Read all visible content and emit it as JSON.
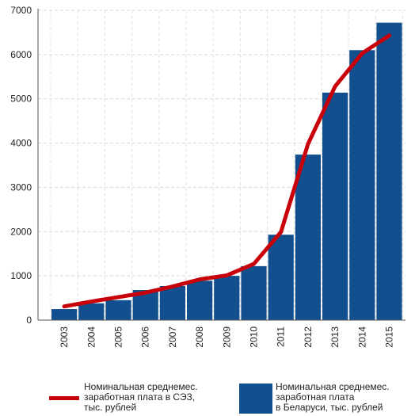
{
  "chart_data": {
    "type": "bar",
    "categories": [
      "2003",
      "2004",
      "2005",
      "2006",
      "2007",
      "2008",
      "2009",
      "2010",
      "2011",
      "2012",
      "2013",
      "2014",
      "2015"
    ],
    "series": [
      {
        "name": "Номинальная среднемес. заработная плата в Беларуси, тыс. рублей",
        "type": "bar",
        "color": "#124f8e",
        "values": [
          250,
          380,
          450,
          680,
          770,
          890,
          1000,
          1220,
          1930,
          3740,
          5140,
          6100,
          6720
        ]
      },
      {
        "name": "Номинальная среднемес. заработная плата в СЭЗ, тыс. рублей",
        "type": "line",
        "color": "#c8000a",
        "values": [
          310,
          420,
          520,
          620,
          760,
          920,
          1010,
          1270,
          1990,
          3980,
          5280,
          6030,
          6430
        ]
      }
    ],
    "ylim": [
      0,
      7000
    ],
    "yticks": [
      0,
      1000,
      2000,
      3000,
      4000,
      5000,
      6000,
      7000
    ],
    "grid": true,
    "xlabel": "",
    "ylabel": ""
  },
  "legend": {
    "line_label": [
      "Номинальная среднемес.",
      "заработная плата в СЭЗ,",
      "тыс. рублей"
    ],
    "bar_label": [
      "Номинальная среднемес.",
      "заработная плата",
      "в Беларуси, тыс. рублей"
    ]
  }
}
